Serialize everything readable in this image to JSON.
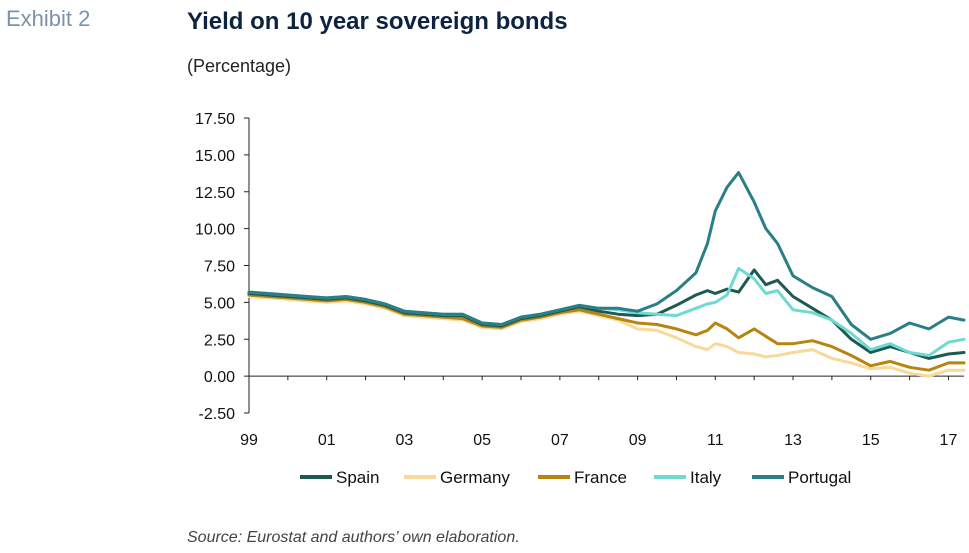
{
  "exhibit_label": "Exhibit 2",
  "source_note": "Source: Eurostat and authors’ own elaboration.",
  "chart_data": {
    "type": "line",
    "title": "Yield on 10 year sovereign bonds",
    "subtitle": "(Percentage)",
    "xlabel": "",
    "ylabel": "",
    "xlim": [
      1999.0,
      2017.4
    ],
    "ylim": [
      -2.5,
      17.5
    ],
    "y_ticks": [
      "17.50",
      "15.00",
      "12.50",
      "10.00",
      "7.50",
      "5.00",
      "2.50",
      "0.00",
      "-2.50"
    ],
    "y_tick_values": [
      17.5,
      15,
      12.5,
      10,
      7.5,
      5,
      2.5,
      0,
      -2.5
    ],
    "x_ticks": [
      "99",
      "01",
      "03",
      "05",
      "07",
      "09",
      "11",
      "13",
      "15",
      "17"
    ],
    "x_tick_values": [
      1999,
      2001,
      2003,
      2005,
      2007,
      2009,
      2011,
      2013,
      2015,
      2017
    ],
    "grid": false,
    "legend_position": "bottom",
    "x": [
      1999.0,
      1999.5,
      2000.0,
      2000.5,
      2001.0,
      2001.5,
      2002.0,
      2002.5,
      2003.0,
      2003.5,
      2004.0,
      2004.5,
      2005.0,
      2005.5,
      2006.0,
      2006.5,
      2007.0,
      2007.5,
      2008.0,
      2008.5,
      2009.0,
      2009.5,
      2010.0,
      2010.5,
      2010.8,
      2011.0,
      2011.3,
      2011.6,
      2012.0,
      2012.3,
      2012.6,
      2013.0,
      2013.5,
      2014.0,
      2014.5,
      2015.0,
      2015.5,
      2016.0,
      2016.5,
      2017.0,
      2017.4
    ],
    "series": [
      {
        "name": "Spain",
        "color": "#1f5a52",
        "values": [
          5.6,
          5.5,
          5.4,
          5.3,
          5.2,
          5.3,
          5.1,
          4.8,
          4.3,
          4.2,
          4.1,
          4.1,
          3.5,
          3.4,
          3.9,
          4.1,
          4.4,
          4.7,
          4.4,
          4.2,
          4.1,
          4.2,
          4.8,
          5.5,
          5.8,
          5.6,
          5.9,
          5.7,
          7.2,
          6.2,
          6.5,
          5.4,
          4.6,
          3.8,
          2.5,
          1.6,
          2.0,
          1.6,
          1.2,
          1.5,
          1.6
        ]
      },
      {
        "name": "Germany",
        "color": "#f7d99a",
        "values": [
          5.4,
          5.3,
          5.2,
          5.1,
          5.0,
          5.1,
          4.9,
          4.6,
          4.1,
          4.0,
          3.9,
          3.8,
          3.3,
          3.2,
          3.7,
          3.9,
          4.2,
          4.4,
          4.1,
          3.8,
          3.2,
          3.1,
          2.6,
          2.0,
          1.8,
          2.2,
          2.0,
          1.6,
          1.5,
          1.3,
          1.4,
          1.6,
          1.8,
          1.2,
          0.9,
          0.5,
          0.6,
          0.2,
          0.0,
          0.4,
          0.4
        ]
      },
      {
        "name": "France",
        "color": "#b88410",
        "values": [
          5.5,
          5.4,
          5.3,
          5.2,
          5.1,
          5.2,
          5.0,
          4.7,
          4.2,
          4.1,
          4.0,
          3.9,
          3.4,
          3.3,
          3.8,
          4.0,
          4.3,
          4.5,
          4.2,
          3.9,
          3.6,
          3.5,
          3.2,
          2.8,
          3.1,
          3.6,
          3.2,
          2.6,
          3.2,
          2.7,
          2.2,
          2.2,
          2.4,
          2.0,
          1.4,
          0.7,
          1.0,
          0.6,
          0.4,
          0.9,
          0.9
        ]
      },
      {
        "name": "Italy",
        "color": "#6fdad1",
        "values": [
          5.7,
          5.6,
          5.5,
          5.4,
          5.3,
          5.4,
          5.2,
          4.9,
          4.4,
          4.3,
          4.2,
          4.2,
          3.6,
          3.5,
          4.0,
          4.2,
          4.5,
          4.8,
          4.6,
          4.5,
          4.3,
          4.2,
          4.1,
          4.6,
          4.9,
          5.0,
          5.5,
          7.3,
          6.6,
          5.6,
          5.8,
          4.5,
          4.3,
          3.8,
          2.9,
          1.8,
          2.2,
          1.6,
          1.4,
          2.3,
          2.5
        ]
      },
      {
        "name": "Portugal",
        "color": "#2a7f87",
        "values": [
          5.7,
          5.6,
          5.5,
          5.4,
          5.3,
          5.4,
          5.2,
          4.9,
          4.4,
          4.3,
          4.2,
          4.2,
          3.6,
          3.5,
          4.0,
          4.2,
          4.5,
          4.8,
          4.6,
          4.6,
          4.4,
          4.9,
          5.8,
          7.0,
          9.0,
          11.2,
          12.8,
          13.8,
          11.8,
          10.0,
          9.0,
          6.8,
          6.0,
          5.4,
          3.5,
          2.5,
          2.9,
          3.6,
          3.2,
          4.0,
          3.8
        ]
      }
    ]
  }
}
